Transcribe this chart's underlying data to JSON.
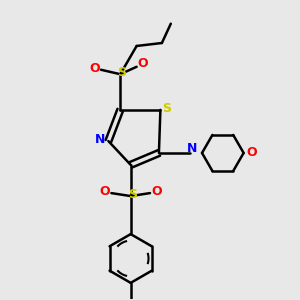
{
  "bg_color": "#e8e8e8",
  "bond_color": "#000000",
  "S_color": "#cccc00",
  "N_color": "#0000ff",
  "O_color": "#ff0000",
  "line_width": 1.8,
  "fig_width": 3.0,
  "fig_height": 3.0,
  "dpi": 100,
  "xlim": [
    0,
    10
  ],
  "ylim": [
    0,
    10
  ]
}
